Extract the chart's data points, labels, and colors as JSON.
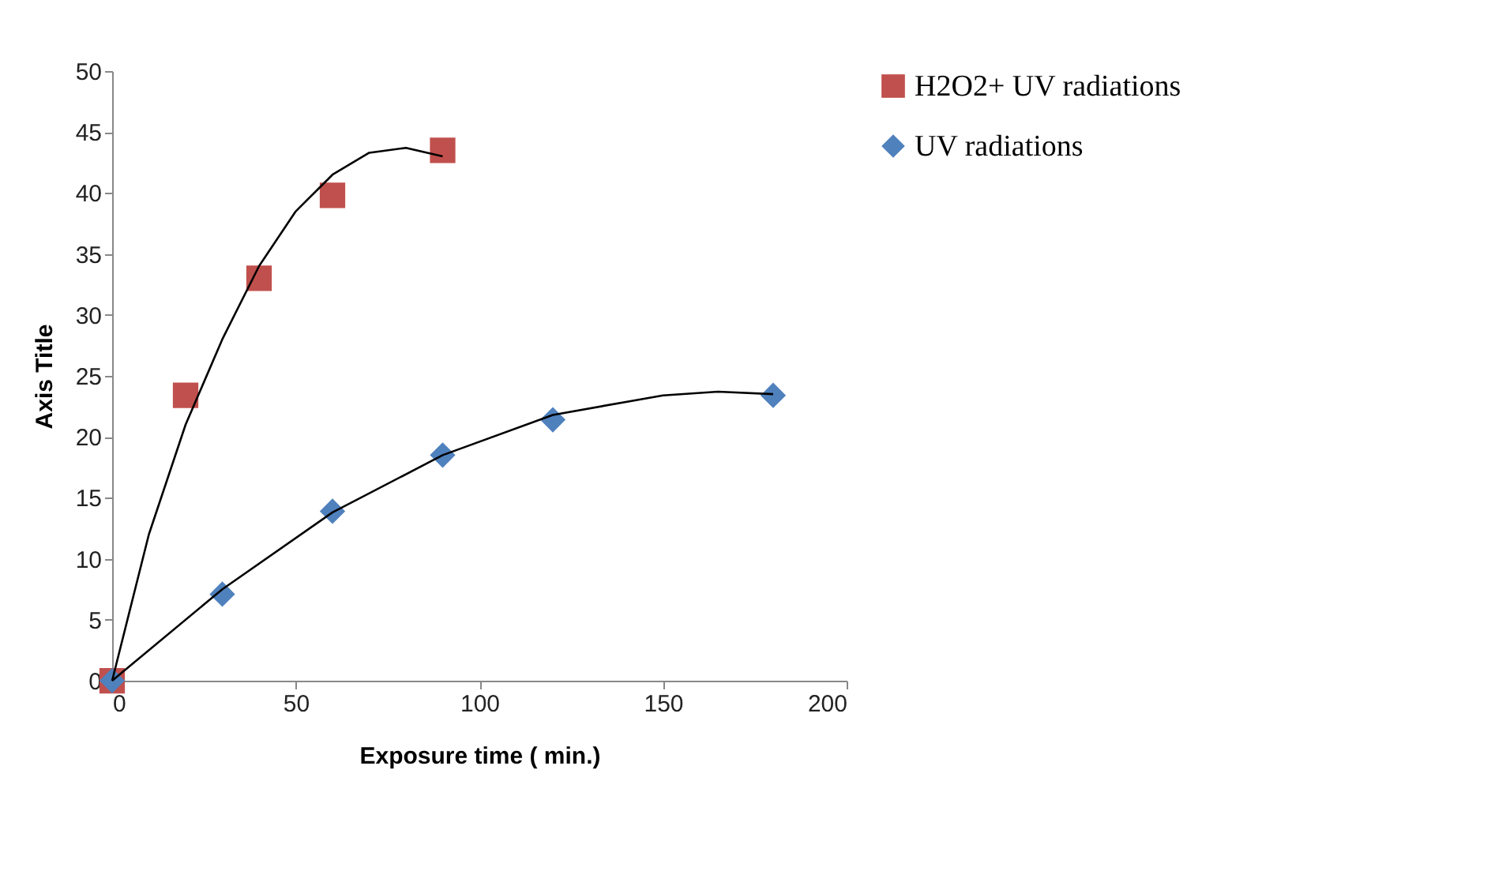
{
  "chart_data": {
    "type": "scatter",
    "xlabel": "Exposure time ( min.)",
    "ylabel": "Axis Title",
    "xlim": [
      0,
      200
    ],
    "xticks": [
      0,
      50,
      100,
      150,
      200
    ],
    "ylim": [
      0,
      50
    ],
    "yticks": [
      0,
      5,
      10,
      15,
      20,
      25,
      30,
      35,
      40,
      45,
      50
    ],
    "grid": false,
    "legend": "right",
    "series": [
      {
        "name": "H2O2+ UV radiations",
        "color": "#c0504d",
        "marker": "square",
        "x": [
          0,
          20,
          40,
          60,
          90
        ],
        "values": [
          0,
          23.4,
          33.0,
          39.8,
          43.5
        ]
      },
      {
        "name": "UV radiations",
        "color": "#4f81bd",
        "marker": "diamond",
        "x": [
          0,
          30,
          60,
          90,
          120,
          180
        ],
        "values": [
          0,
          7.1,
          13.9,
          18.5,
          21.4,
          23.4
        ]
      },
      {
        "type": "line",
        "color": "#000000",
        "marker": "none",
        "line_style": "solid",
        "x": [
          0,
          10,
          20,
          30,
          40,
          50,
          60,
          70,
          80,
          90
        ],
        "values": [
          0,
          12,
          21,
          28,
          34,
          38.5,
          41.5,
          43.3,
          43.7,
          43
        ]
      },
      {
        "type": "line",
        "color": "#000000",
        "marker": "none",
        "line_style": "solid",
        "x": [
          0,
          30,
          60,
          90,
          120,
          150,
          165,
          180
        ],
        "values": [
          0,
          7.5,
          13.8,
          18.5,
          21.8,
          23.4,
          23.7,
          23.5
        ]
      }
    ]
  }
}
